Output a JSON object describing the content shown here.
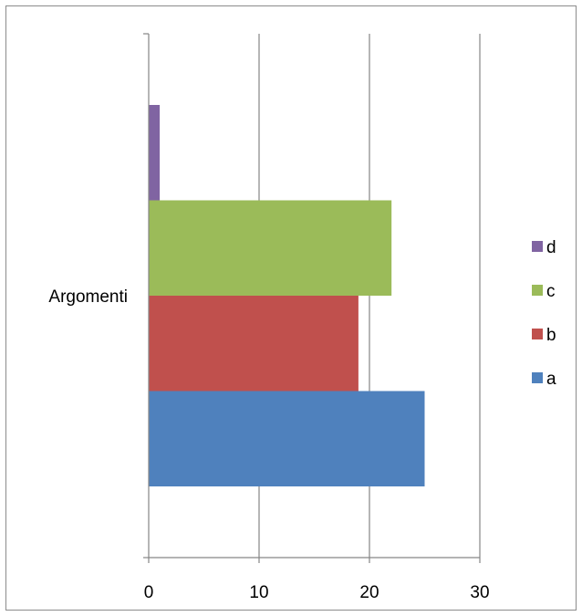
{
  "chart_data": {
    "type": "bar",
    "orientation": "horizontal",
    "title": "",
    "xlabel": "",
    "ylabel": "",
    "categories": [
      "Argomenti"
    ],
    "xlim": [
      0,
      30
    ],
    "x_ticks": [
      0,
      10,
      20,
      30
    ],
    "grid": true,
    "legend_position": "right",
    "series": [
      {
        "name": "a",
        "values": [
          25
        ],
        "color": "#4F81BD"
      },
      {
        "name": "b",
        "values": [
          19
        ],
        "color": "#C0504D"
      },
      {
        "name": "c",
        "values": [
          22
        ],
        "color": "#9BBB59"
      },
      {
        "name": "d",
        "values": [
          1
        ],
        "color": "#8064A2"
      }
    ]
  }
}
